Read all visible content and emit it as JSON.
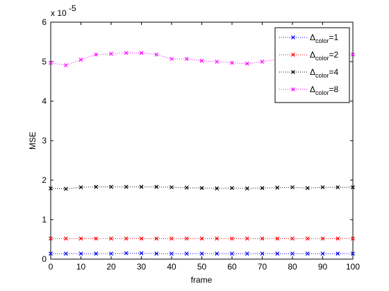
{
  "chart_data": {
    "type": "line",
    "xlabel": "frame",
    "ylabel": "MSE",
    "xlim": [
      0,
      100
    ],
    "ylim": [
      0,
      6
    ],
    "y_scale_text": "x 10",
    "y_scale_exponent": "-5",
    "x_ticks": [
      "0",
      "10",
      "20",
      "30",
      "40",
      "50",
      "60",
      "70",
      "80",
      "90",
      "100"
    ],
    "y_ticks": [
      "0",
      "1",
      "2",
      "3",
      "4",
      "5",
      "6"
    ],
    "legend_position": "top-right",
    "grid": false,
    "marker": "x",
    "line_style": "dotted",
    "x": [
      0,
      5,
      10,
      15,
      20,
      25,
      30,
      35,
      40,
      45,
      50,
      55,
      60,
      65,
      70,
      75,
      80,
      85,
      90,
      95,
      100
    ],
    "series": [
      {
        "name": "Δcolor=1",
        "label_main": "Δ",
        "label_sub": "color",
        "label_tail": "=1",
        "color": "#0000ff",
        "values": [
          0.14,
          0.14,
          0.14,
          0.14,
          0.14,
          0.15,
          0.15,
          0.14,
          0.14,
          0.14,
          0.14,
          0.14,
          0.14,
          0.14,
          0.14,
          0.14,
          0.14,
          0.14,
          0.14,
          0.14,
          0.14
        ]
      },
      {
        "name": "Δcolor=2",
        "label_main": "Δ",
        "label_sub": "color",
        "label_tail": "=2",
        "color": "#ff0000",
        "values": [
          0.52,
          0.52,
          0.52,
          0.52,
          0.52,
          0.52,
          0.52,
          0.52,
          0.52,
          0.52,
          0.52,
          0.52,
          0.52,
          0.52,
          0.52,
          0.52,
          0.52,
          0.52,
          0.52,
          0.52,
          0.52
        ]
      },
      {
        "name": "Δcolor=4",
        "label_main": "Δ",
        "label_sub": "color",
        "label_tail": "=4",
        "color": "#000000",
        "values": [
          1.79,
          1.78,
          1.82,
          1.83,
          1.83,
          1.83,
          1.83,
          1.83,
          1.82,
          1.81,
          1.8,
          1.79,
          1.8,
          1.79,
          1.8,
          1.81,
          1.82,
          1.8,
          1.82,
          1.82,
          1.82
        ]
      },
      {
        "name": "Δcolor=8",
        "label_main": "Δ",
        "label_sub": "color",
        "label_tail": "=8",
        "color": "#ff00ff",
        "values": [
          4.97,
          4.91,
          5.05,
          5.18,
          5.2,
          5.22,
          5.22,
          5.18,
          5.07,
          5.07,
          5.02,
          5.0,
          4.97,
          4.95,
          5.0,
          5.06,
          5.1,
          5.12,
          5.15,
          5.18,
          5.18
        ]
      }
    ]
  }
}
